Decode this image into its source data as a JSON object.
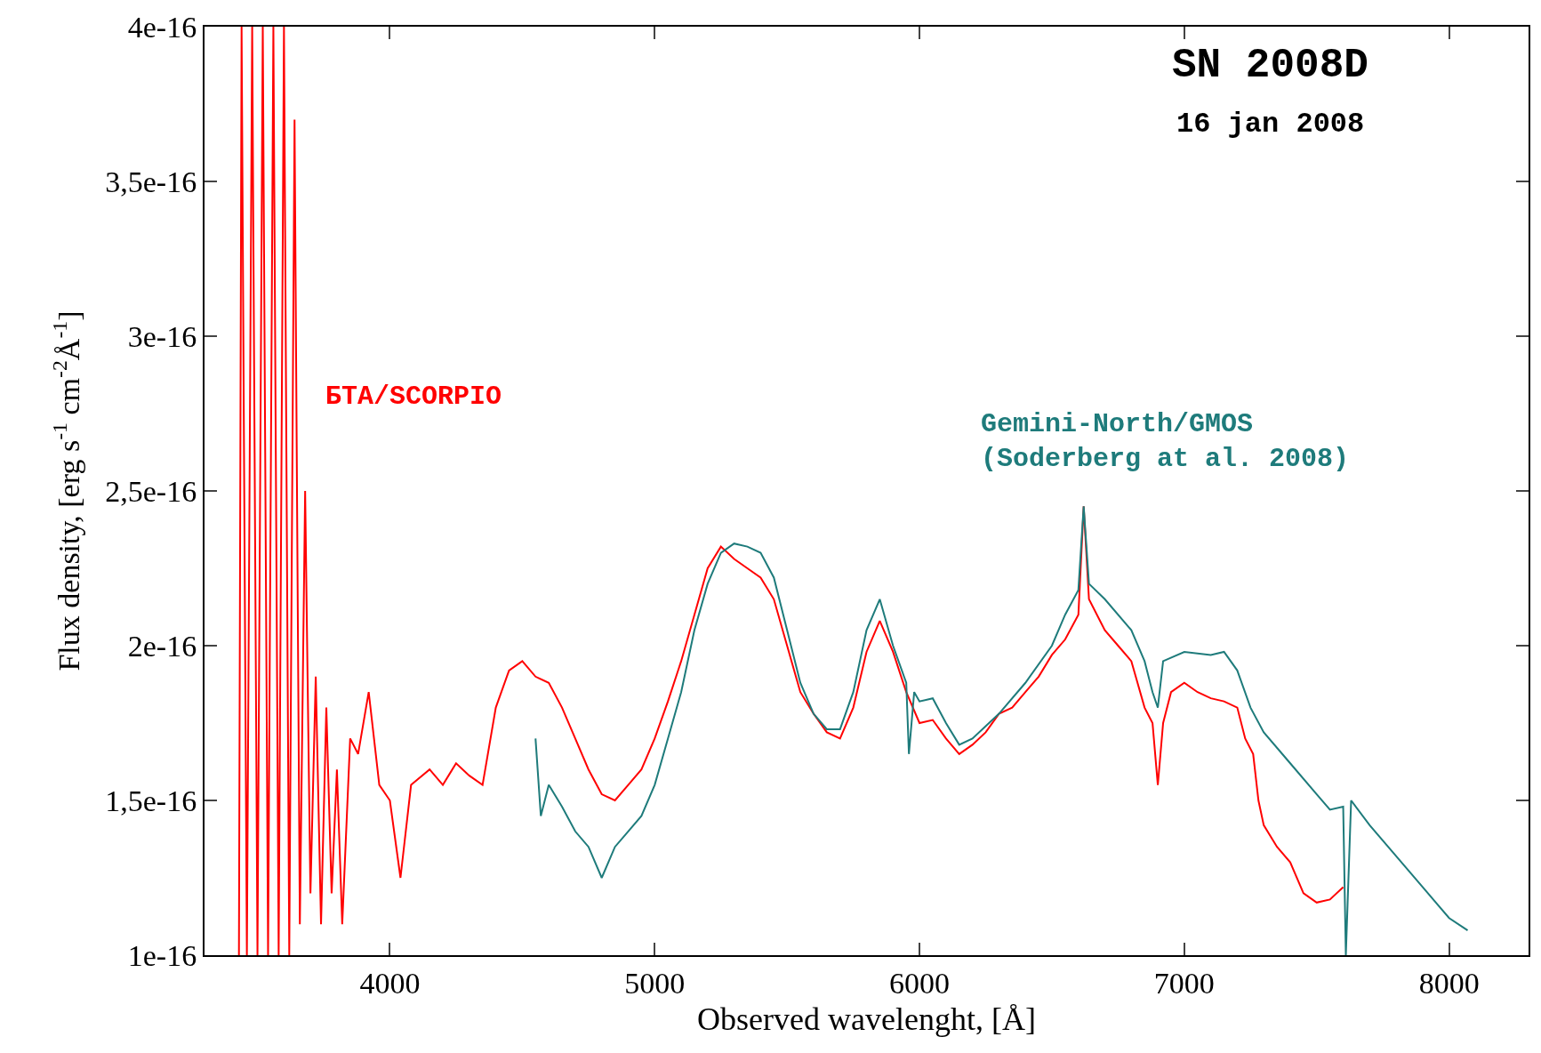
{
  "chart_data": {
    "type": "line",
    "xlabel": "Observed wavelenght, [Å]",
    "ylabel": "Flux density, [erg s$^{-1}$ cm$^{-2}$Å$^{-1}$]",
    "annotations": [
      "SN 2008D",
      "16 jan 2008"
    ],
    "xlim": [
      3300,
      8300
    ],
    "xticks": [
      4000,
      5000,
      6000,
      7000,
      8000
    ],
    "ylim": [
      1e-16,
      4e-16
    ],
    "yticks": [
      {
        "value": 1e-16,
        "label": "1e-16"
      },
      {
        "value": 1.5e-16,
        "label": "1,5e-16"
      },
      {
        "value": 2e-16,
        "label": "2e-16"
      },
      {
        "value": 2.5e-16,
        "label": "2,5e-16"
      },
      {
        "value": 3e-16,
        "label": "3e-16"
      },
      {
        "value": 3.5e-16,
        "label": "3,5e-16"
      },
      {
        "value": 4e-16,
        "label": "4e-16"
      }
    ],
    "grid": false,
    "legend": false,
    "marker": "none",
    "line_style": "solid",
    "series": [
      {
        "name": "БТА/SCORPIO",
        "color": "#ff0000",
        "x": [
          3430,
          3440,
          3460,
          3480,
          3500,
          3520,
          3540,
          3560,
          3580,
          3600,
          3620,
          3640,
          3660,
          3680,
          3700,
          3720,
          3740,
          3760,
          3780,
          3800,
          3820,
          3850,
          3880,
          3920,
          3960,
          4000,
          4040,
          4080,
          4150,
          4200,
          4250,
          4300,
          4350,
          4400,
          4450,
          4500,
          4550,
          4600,
          4650,
          4700,
          4750,
          4800,
          4850,
          4900,
          4950,
          5000,
          5050,
          5100,
          5150,
          5200,
          5250,
          5300,
          5350,
          5400,
          5450,
          5500,
          5550,
          5600,
          5650,
          5700,
          5750,
          5800,
          5850,
          5900,
          5950,
          6000,
          6050,
          6100,
          6150,
          6200,
          6250,
          6300,
          6350,
          6400,
          6450,
          6500,
          6550,
          6600,
          6620,
          6640,
          6700,
          6750,
          6800,
          6850,
          6880,
          6900,
          6920,
          6950,
          7000,
          7050,
          7100,
          7150,
          7200,
          7230,
          7260,
          7280,
          7300,
          7350,
          7400,
          7450,
          7500,
          7550,
          7600
        ],
        "values": [
          1e-16,
          4e-16,
          1e-16,
          4e-16,
          1e-16,
          4e-16,
          1e-16,
          4e-16,
          1e-16,
          4e-16,
          1e-16,
          3.7e-16,
          1.1e-16,
          2.5e-16,
          1.2e-16,
          1.9e-16,
          1.1e-16,
          1.8e-16,
          1.2e-16,
          1.6e-16,
          1.1e-16,
          1.7e-16,
          1.65e-16,
          1.85e-16,
          1.55e-16,
          1.5e-16,
          1.25e-16,
          1.55e-16,
          1.6e-16,
          1.55e-16,
          1.62e-16,
          1.58e-16,
          1.55e-16,
          1.8e-16,
          1.92e-16,
          1.95e-16,
          1.9e-16,
          1.88e-16,
          1.8e-16,
          1.7e-16,
          1.6e-16,
          1.52e-16,
          1.5e-16,
          1.55e-16,
          1.6e-16,
          1.7e-16,
          1.82e-16,
          1.95e-16,
          2.1e-16,
          2.25e-16,
          2.32e-16,
          2.28e-16,
          2.25e-16,
          2.22e-16,
          2.15e-16,
          2e-16,
          1.85e-16,
          1.78e-16,
          1.72e-16,
          1.7e-16,
          1.8e-16,
          1.98e-16,
          2.08e-16,
          1.98e-16,
          1.85e-16,
          1.75e-16,
          1.76e-16,
          1.7e-16,
          1.65e-16,
          1.68e-16,
          1.72e-16,
          1.78e-16,
          1.8e-16,
          1.85e-16,
          1.9e-16,
          1.97e-16,
          2.02e-16,
          2.1e-16,
          2.45e-16,
          2.15e-16,
          2.05e-16,
          2e-16,
          1.95e-16,
          1.8e-16,
          1.75e-16,
          1.55e-16,
          1.75e-16,
          1.85e-16,
          1.88e-16,
          1.85e-16,
          1.83e-16,
          1.82e-16,
          1.8e-16,
          1.7e-16,
          1.65e-16,
          1.5e-16,
          1.42e-16,
          1.35e-16,
          1.3e-16,
          1.2e-16,
          1.17e-16,
          1.18e-16,
          1.22e-16
        ]
      },
      {
        "name": "Gemini-North/GMOS\n(Soderberg at al. 2008)",
        "color": "#1e7b7b",
        "x": [
          4550,
          4570,
          4600,
          4650,
          4700,
          4750,
          4800,
          4850,
          4900,
          4950,
          5000,
          5050,
          5100,
          5150,
          5200,
          5250,
          5300,
          5350,
          5400,
          5450,
          5500,
          5550,
          5600,
          5650,
          5700,
          5750,
          5800,
          5850,
          5900,
          5950,
          5960,
          5980,
          6000,
          6050,
          6100,
          6150,
          6200,
          6300,
          6400,
          6500,
          6550,
          6600,
          6620,
          6640,
          6700,
          6800,
          6850,
          6880,
          6900,
          6920,
          7000,
          7100,
          7150,
          7200,
          7250,
          7300,
          7400,
          7500,
          7550,
          7600,
          7610,
          7630,
          7700,
          7800,
          7900,
          8000,
          8070
        ],
        "values": [
          1.7e-16,
          1.45e-16,
          1.55e-16,
          1.48e-16,
          1.4e-16,
          1.35e-16,
          1.25e-16,
          1.35e-16,
          1.4e-16,
          1.45e-16,
          1.55e-16,
          1.7e-16,
          1.85e-16,
          2.05e-16,
          2.2e-16,
          2.3e-16,
          2.33e-16,
          2.32e-16,
          2.3e-16,
          2.22e-16,
          2.05e-16,
          1.88e-16,
          1.78e-16,
          1.73e-16,
          1.73e-16,
          1.85e-16,
          2.05e-16,
          2.15e-16,
          2e-16,
          1.88e-16,
          1.65e-16,
          1.85e-16,
          1.82e-16,
          1.83e-16,
          1.75e-16,
          1.68e-16,
          1.7e-16,
          1.78e-16,
          1.88e-16,
          2e-16,
          2.1e-16,
          2.18e-16,
          2.45e-16,
          2.2e-16,
          2.15e-16,
          2.05e-16,
          1.95e-16,
          1.85e-16,
          1.8e-16,
          1.95e-16,
          1.98e-16,
          1.97e-16,
          1.98e-16,
          1.92e-16,
          1.8e-16,
          1.72e-16,
          1.62e-16,
          1.52e-16,
          1.47e-16,
          1.48e-16,
          1e-16,
          1.5e-16,
          1.42e-16,
          1.32e-16,
          1.22e-16,
          1.12e-16,
          1.08e-16
        ]
      }
    ]
  }
}
